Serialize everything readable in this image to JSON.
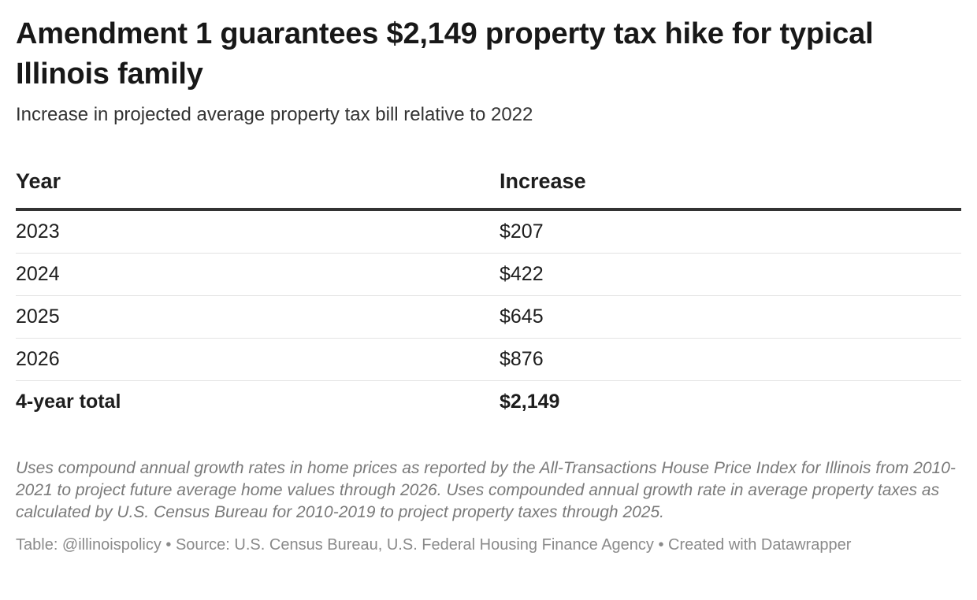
{
  "title": "Amendment 1 guarantees $2,149 property tax hike for typical Illinois family",
  "subtitle": "Increase in projected average property tax bill relative to 2022",
  "table": {
    "headers": [
      "Year",
      "Increase"
    ],
    "rows": [
      [
        "2023",
        "$207"
      ],
      [
        "2024",
        "$422"
      ],
      [
        "2025",
        "$645"
      ],
      [
        "2026",
        "$876"
      ]
    ],
    "total": [
      "4-year total",
      "$2,149"
    ]
  },
  "notes": "Uses compound annual growth rates in home prices as reported by the All-Transactions House Price Index for Illinois from 2010-2021 to project future average home values through 2026. Uses compounded annual growth rate in average property taxes as calculated by U.S. Census Bureau for 2010-2019 to project property taxes through 2025.",
  "footer": "Table: @illinoispolicy • Source: U.S. Census Bureau, U.S. Federal Housing Finance Agency • Created with Datawrapper",
  "chart_data": {
    "type": "table",
    "title": "Amendment 1 guarantees $2,149 property tax hike for typical Illinois family",
    "subtitle": "Increase in projected average property tax bill relative to 2022",
    "columns": [
      "Year",
      "Increase"
    ],
    "categories": [
      "2023",
      "2024",
      "2025",
      "2026"
    ],
    "values": [
      207,
      422,
      645,
      876
    ],
    "total": 2149
  },
  "colors": {
    "text": "#1d1d1d",
    "header_rule": "#333333",
    "row_rule": "#e3e3e3",
    "notes": "#7a7a7a"
  }
}
